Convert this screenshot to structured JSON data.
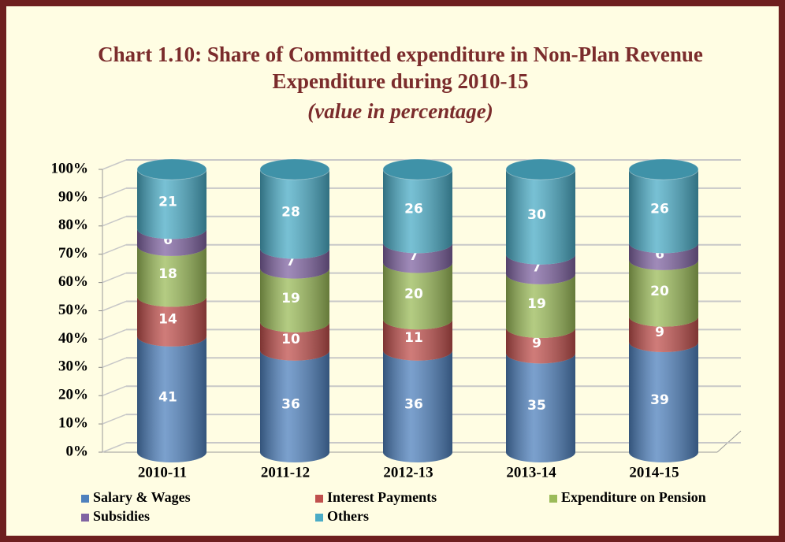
{
  "chart_data": {
    "type": "stacked_bar_3d",
    "title": "Chart 1.10: Share of Committed  expenditure in  Non-Plan Revenue Expenditure during 2010-15",
    "subtitle": "(value in percentage)",
    "categories": [
      "2010-11",
      "2011-12",
      "2012-13",
      "2013-14",
      "2014-15"
    ],
    "series": [
      {
        "name": "Salary & Wages",
        "color": "#4f81bd",
        "values": [
          41,
          36,
          36,
          35,
          39
        ]
      },
      {
        "name": "Interest Payments",
        "color": "#c0504d",
        "values": [
          14,
          10,
          11,
          9,
          9
        ]
      },
      {
        "name": "Expenditure on Pension",
        "color": "#9bbb59",
        "values": [
          18,
          19,
          20,
          19,
          20
        ]
      },
      {
        "name": "Subsidies",
        "color": "#8064a2",
        "values": [
          6,
          7,
          7,
          7,
          6
        ]
      },
      {
        "name": "Others",
        "color": "#4bacc6",
        "values": [
          21,
          28,
          26,
          30,
          26
        ]
      }
    ],
    "ylim": [
      0,
      100
    ],
    "yticks": [
      {
        "value": 0,
        "label": "0%"
      },
      {
        "value": 10,
        "label": "10%"
      },
      {
        "value": 20,
        "label": "20%"
      },
      {
        "value": 30,
        "label": "30%"
      },
      {
        "value": 40,
        "label": "40%"
      },
      {
        "value": 50,
        "label": "50%"
      },
      {
        "value": 60,
        "label": "60%"
      },
      {
        "value": 70,
        "label": "70%"
      },
      {
        "value": 80,
        "label": "80%"
      },
      {
        "value": 90,
        "label": "90%"
      },
      {
        "value": 100,
        "label": "100%"
      }
    ],
    "grid": true,
    "legend": "bottom"
  }
}
